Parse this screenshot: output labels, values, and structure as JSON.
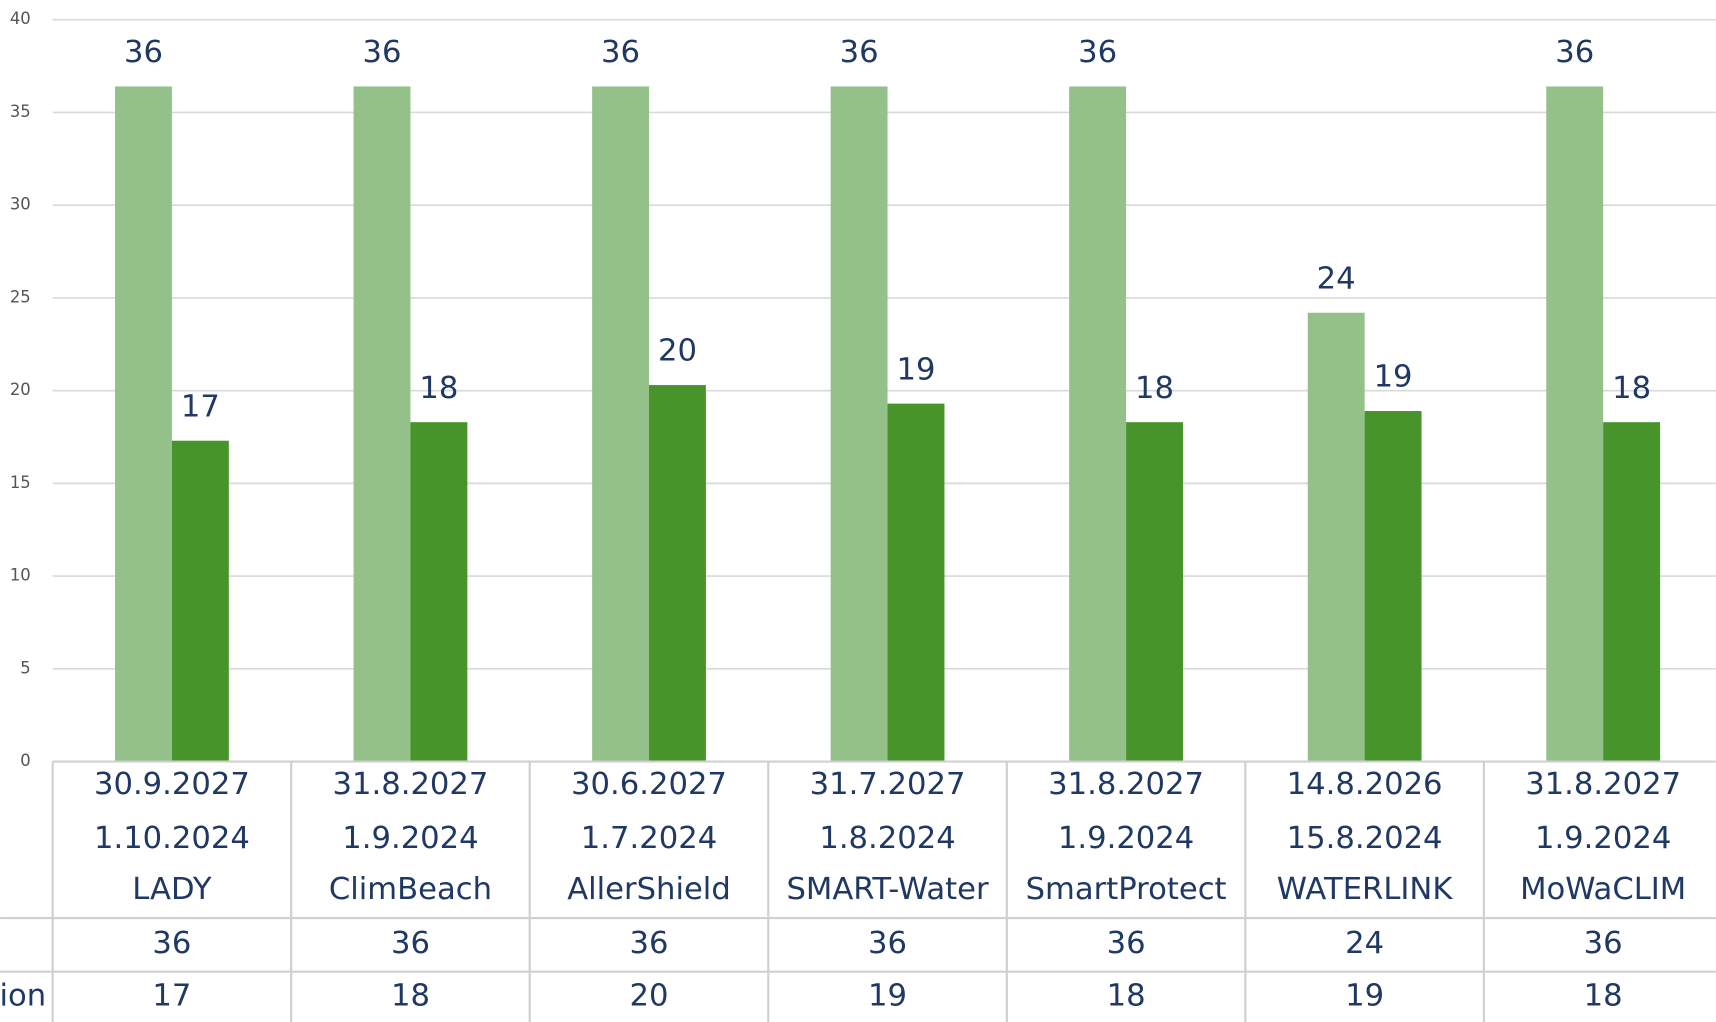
{
  "chart_data": {
    "type": "bar",
    "categories": [
      [
        "30.9.2027",
        "1.10.2024",
        "LADY"
      ],
      [
        "31.8.2027",
        "1.9.2024",
        "ClimBeach"
      ],
      [
        "30.6.2027",
        "1.7.2024",
        "AllerShield"
      ],
      [
        "31.7.2027",
        "1.8.2024",
        "SMART-Water"
      ],
      [
        "31.8.2027",
        "1.9.2024",
        "SmartProtect"
      ],
      [
        "14.8.2026",
        "15.8.2024",
        "WATERLINK"
      ],
      [
        "31.8.2027",
        "1.9.2024",
        "MoWaCLIM"
      ]
    ],
    "series": [
      {
        "color": "#93c189",
        "values": [
          36.4,
          36.4,
          36.4,
          36.4,
          36.4,
          24.2,
          36.4
        ],
        "value_labels": [
          "36",
          "36",
          "36",
          "36",
          "36",
          "24",
          "36"
        ]
      },
      {
        "name": "ion",
        "color": "#46942a",
        "values": [
          17.3,
          18.3,
          20.3,
          19.3,
          18.3,
          18.9,
          18.3
        ],
        "value_labels": [
          "17",
          "18",
          "20",
          "19",
          "18",
          "19",
          "18"
        ]
      }
    ],
    "ylim": [
      0,
      40
    ],
    "yticks": [
      0,
      5,
      10,
      15,
      20,
      25,
      30,
      35,
      40
    ],
    "grid": true,
    "data_table": true
  }
}
